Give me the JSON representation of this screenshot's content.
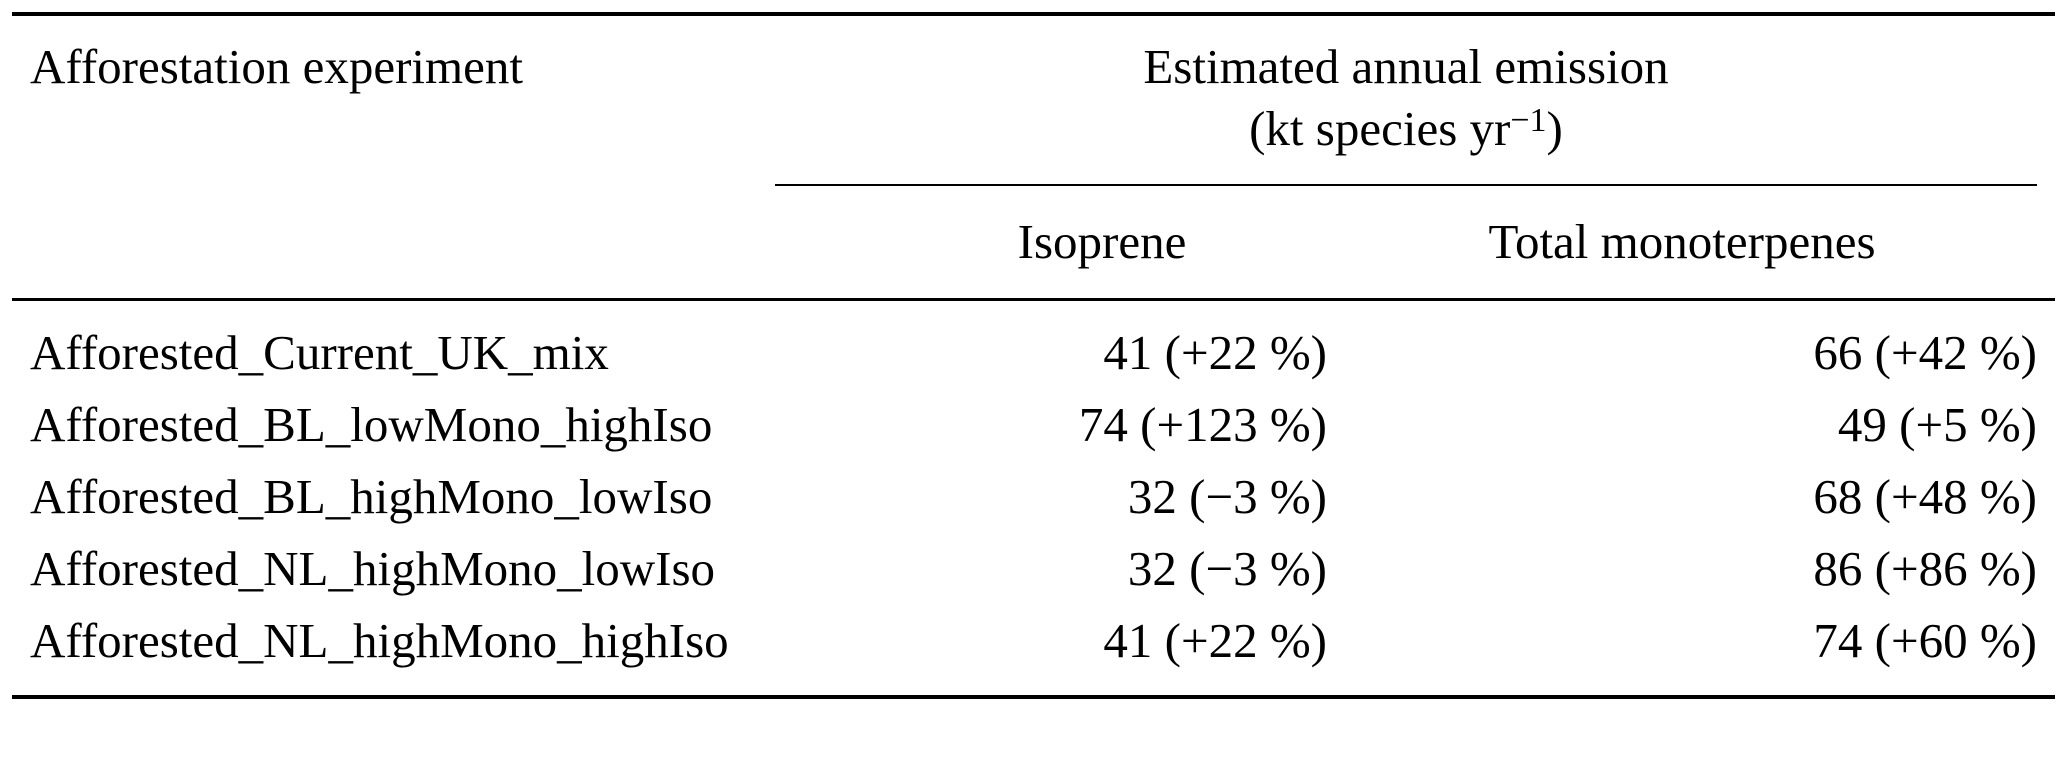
{
  "table": {
    "col1_header": "Afforestation experiment",
    "group_header": {
      "line1": "Estimated annual emission",
      "line2_prefix": "(kt species yr",
      "line2_sup": "−1",
      "line2_suffix": ")"
    },
    "subheaders": [
      "Isoprene",
      "Total monoterpenes"
    ],
    "rows": [
      {
        "experiment": "Afforested_Current_UK_mix",
        "isoprene": "41 (+22 %)",
        "monoterpenes": "66 (+42 %)"
      },
      {
        "experiment": "Afforested_BL_lowMono_highIso",
        "isoprene": "74 (+123 %)",
        "monoterpenes": "49 (+5 %)"
      },
      {
        "experiment": "Afforested_BL_highMono_lowIso",
        "isoprene": "32 (−3 %)",
        "monoterpenes": "68 (+48 %)"
      },
      {
        "experiment": "Afforested_NL_highMono_lowIso",
        "isoprene": "32 (−3 %)",
        "monoterpenes": "86 (+86 %)"
      },
      {
        "experiment": "Afforested_NL_highMono_highIso",
        "isoprene": "41 (+22 %)",
        "monoterpenes": "74 (+60 %)"
      }
    ]
  }
}
